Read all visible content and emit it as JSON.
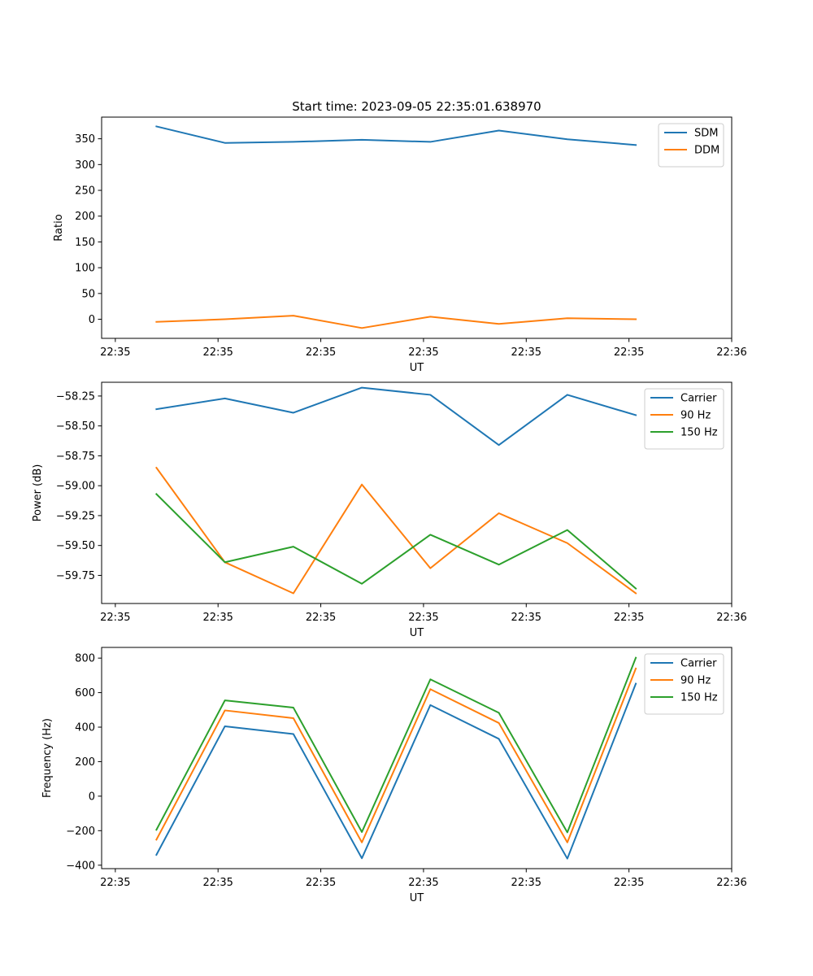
{
  "figure_title": "Start time: 2023-09-05 22:35:01.638970",
  "chart_data": [
    {
      "type": "line",
      "title": "Start time: 2023-09-05 22:35:01.638970",
      "xlabel": "UT",
      "ylabel": "Ratio",
      "x": [
        1,
        2,
        3,
        4,
        5,
        6,
        7,
        8
      ],
      "xlim": [
        0.2,
        9.4
      ],
      "xticks": [
        0.4,
        1.9,
        3.4,
        4.9,
        6.4,
        7.9,
        9.4
      ],
      "xtick_labels": [
        "22:35",
        "22:35",
        "22:35",
        "22:35",
        "22:35",
        "22:35",
        "22:36"
      ],
      "ylim": [
        -37,
        392
      ],
      "yticks": [
        0,
        50,
        100,
        150,
        200,
        250,
        300,
        350
      ],
      "ytick_labels": [
        "0",
        "50",
        "100",
        "150",
        "200",
        "250",
        "300",
        "350"
      ],
      "legend": "top-right",
      "series": [
        {
          "name": "SDM",
          "color": "#1f77b4",
          "values": [
            374,
            342,
            344,
            348,
            344,
            366,
            349,
            338
          ]
        },
        {
          "name": "DDM",
          "color": "#ff7f0e",
          "values": [
            -5,
            0,
            7,
            -17,
            5,
            -9,
            2,
            0
          ]
        }
      ]
    },
    {
      "type": "line",
      "title": "",
      "xlabel": "UT",
      "ylabel": "Power (dB)",
      "x": [
        1,
        2,
        3,
        4,
        5,
        6,
        7,
        8
      ],
      "xlim": [
        0.2,
        9.4
      ],
      "xticks": [
        0.4,
        1.9,
        3.4,
        4.9,
        6.4,
        7.9,
        9.4
      ],
      "xtick_labels": [
        "22:35",
        "22:35",
        "22:35",
        "22:35",
        "22:35",
        "22:35",
        "22:36"
      ],
      "ylim": [
        -59.985,
        -58.135
      ],
      "yticks": [
        -59.75,
        -59.5,
        -59.25,
        -59.0,
        -58.75,
        -58.5,
        -58.25
      ],
      "ytick_labels": [
        "−59.75",
        "−59.50",
        "−59.25",
        "−59.00",
        "−58.75",
        "−58.50",
        "−58.25"
      ],
      "legend": "top-right",
      "series": [
        {
          "name": "Carrier",
          "color": "#1f77b4",
          "values": [
            -58.36,
            -58.27,
            -58.39,
            -58.18,
            -58.24,
            -58.66,
            -58.24,
            -58.41
          ]
        },
        {
          "name": "90 Hz",
          "color": "#ff7f0e",
          "values": [
            -58.85,
            -59.64,
            -59.9,
            -58.99,
            -59.69,
            -59.23,
            -59.48,
            -59.9
          ]
        },
        {
          "name": "150 Hz",
          "color": "#2ca02c",
          "values": [
            -59.07,
            -59.64,
            -59.51,
            -59.82,
            -59.41,
            -59.66,
            -59.37,
            -59.86
          ]
        }
      ]
    },
    {
      "type": "line",
      "title": "",
      "xlabel": "UT",
      "ylabel": "Frequency (Hz)",
      "x": [
        1,
        2,
        3,
        4,
        5,
        6,
        7,
        8
      ],
      "xlim": [
        0.2,
        9.4
      ],
      "xticks": [
        0.4,
        1.9,
        3.4,
        4.9,
        6.4,
        7.9,
        9.4
      ],
      "xtick_labels": [
        "22:35",
        "22:35",
        "22:35",
        "22:35",
        "22:35",
        "22:35",
        "22:36"
      ],
      "ylim": [
        -420,
        862
      ],
      "yticks": [
        -400,
        -200,
        0,
        200,
        400,
        600,
        800
      ],
      "ytick_labels": [
        "−400",
        "−200",
        "0",
        "200",
        "400",
        "600",
        "800"
      ],
      "legend": "top-right",
      "series": [
        {
          "name": "Carrier",
          "color": "#1f77b4",
          "values": [
            -340,
            405,
            360,
            -360,
            528,
            332,
            -362,
            652
          ]
        },
        {
          "name": "90 Hz",
          "color": "#ff7f0e",
          "values": [
            -252,
            497,
            452,
            -268,
            620,
            424,
            -268,
            740
          ]
        },
        {
          "name": "150 Hz",
          "color": "#2ca02c",
          "values": [
            -195,
            555,
            513,
            -208,
            677,
            483,
            -210,
            802
          ]
        }
      ]
    }
  ]
}
